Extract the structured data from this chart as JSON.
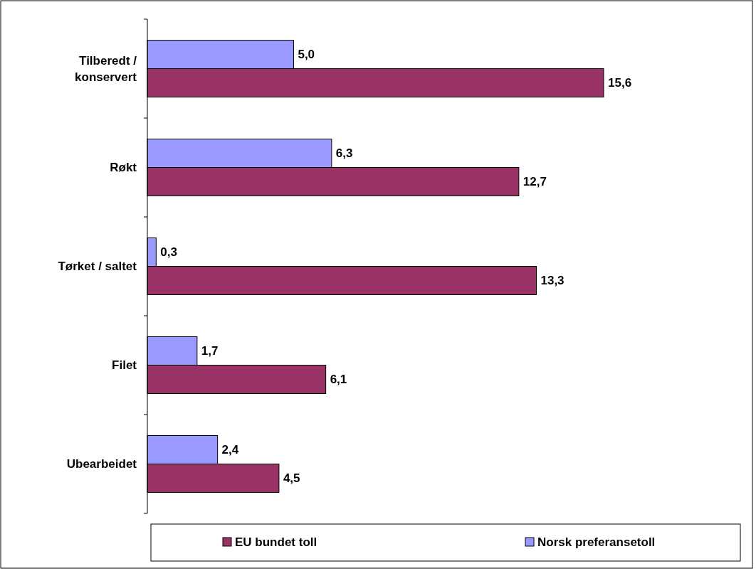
{
  "chart_data": {
    "type": "bar",
    "orientation": "horizontal",
    "categories": [
      "Tilberedt / konservert",
      "Røkt",
      "Tørket / saltet",
      "Filet",
      "Ubearbeidet"
    ],
    "series": [
      {
        "name": "EU bundet toll",
        "color": "#993366",
        "values": [
          15.6,
          12.7,
          13.3,
          6.1,
          4.5
        ],
        "value_labels": [
          "15,6",
          "12,7",
          "13,3",
          "6,1",
          "4,5"
        ]
      },
      {
        "name": "Norsk preferansetoll",
        "color": "#9999ff",
        "values": [
          5.0,
          6.3,
          0.3,
          1.7,
          2.4
        ],
        "value_labels": [
          "5,0",
          "6,3",
          "0,3",
          "1,7",
          "2,4"
        ]
      }
    ],
    "legend": "bottom"
  }
}
